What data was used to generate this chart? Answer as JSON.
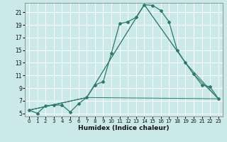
{
  "xlabel": "Humidex (Indice chaleur)",
  "xlim": [
    -0.5,
    23.5
  ],
  "ylim": [
    4.5,
    22.5
  ],
  "yticks": [
    5,
    7,
    9,
    11,
    13,
    15,
    17,
    19,
    21
  ],
  "xticks": [
    0,
    1,
    2,
    3,
    4,
    5,
    6,
    7,
    8,
    9,
    10,
    11,
    12,
    13,
    14,
    15,
    16,
    17,
    18,
    19,
    20,
    21,
    22,
    23
  ],
  "background_color": "#cce9e9",
  "grid_color": "#ffffff",
  "line_color": "#2d7a6a",
  "main_line": {
    "x": [
      0,
      1,
      2,
      3,
      4,
      5,
      6,
      7,
      8,
      9,
      10,
      11,
      12,
      13,
      14,
      15,
      16,
      17,
      18,
      19,
      20,
      21,
      22,
      23
    ],
    "y": [
      5.5,
      5.0,
      6.2,
      6.3,
      6.3,
      5.2,
      6.5,
      7.5,
      9.5,
      10.0,
      14.5,
      19.2,
      19.5,
      20.2,
      22.2,
      22.1,
      21.3,
      19.5,
      15.0,
      13.0,
      11.2,
      9.5,
      9.2,
      7.3
    ]
  },
  "secondary_lines": [
    {
      "x": [
        0,
        7,
        14,
        19,
        23
      ],
      "y": [
        5.5,
        7.5,
        22.2,
        13.0,
        7.3
      ]
    },
    {
      "x": [
        0,
        7,
        14,
        20,
        23
      ],
      "y": [
        5.5,
        7.5,
        22.2,
        11.2,
        7.3
      ]
    },
    {
      "x": [
        0,
        7,
        23
      ],
      "y": [
        5.5,
        7.5,
        7.3
      ]
    }
  ],
  "tick_fontsize": 5.5,
  "xlabel_fontsize": 6.5
}
